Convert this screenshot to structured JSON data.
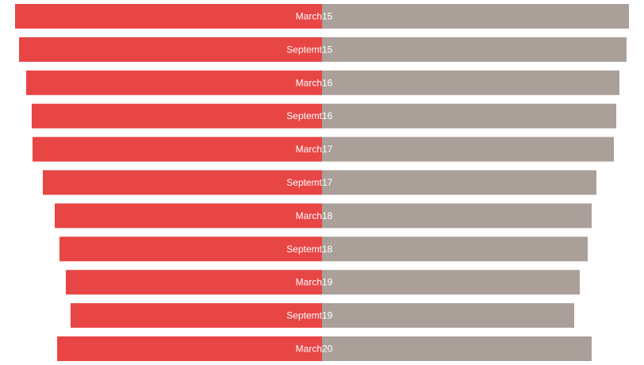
{
  "chart_data": {
    "type": "bar",
    "orientation": "horizontal-diverging",
    "categories": [
      {
        "left": "March",
        "right": "15"
      },
      {
        "left": "Septemt",
        "right": "15"
      },
      {
        "left": "March",
        "right": "16"
      },
      {
        "left": "Septemt",
        "right": "16"
      },
      {
        "left": "March",
        "right": "17"
      },
      {
        "left": "Septemt",
        "right": "17"
      },
      {
        "left": "March",
        "right": "18"
      },
      {
        "left": "Septemt",
        "right": "18"
      },
      {
        "left": "March",
        "right": "19"
      },
      {
        "left": "Septemt",
        "right": "19"
      },
      {
        "left": "March",
        "right": "20"
      }
    ],
    "series": [
      {
        "color": "#e84545",
        "side": "left",
        "values": [
          387,
          382,
          373,
          366,
          365,
          352,
          337,
          331,
          323,
          317,
          334
        ]
      },
      {
        "color": "#ab9f99",
        "side": "right",
        "values": [
          387,
          384,
          375,
          371,
          368,
          346,
          340,
          335,
          325,
          318,
          340
        ]
      }
    ],
    "xlim": [
      0,
      400
    ],
    "grid": false,
    "legend": "none"
  }
}
